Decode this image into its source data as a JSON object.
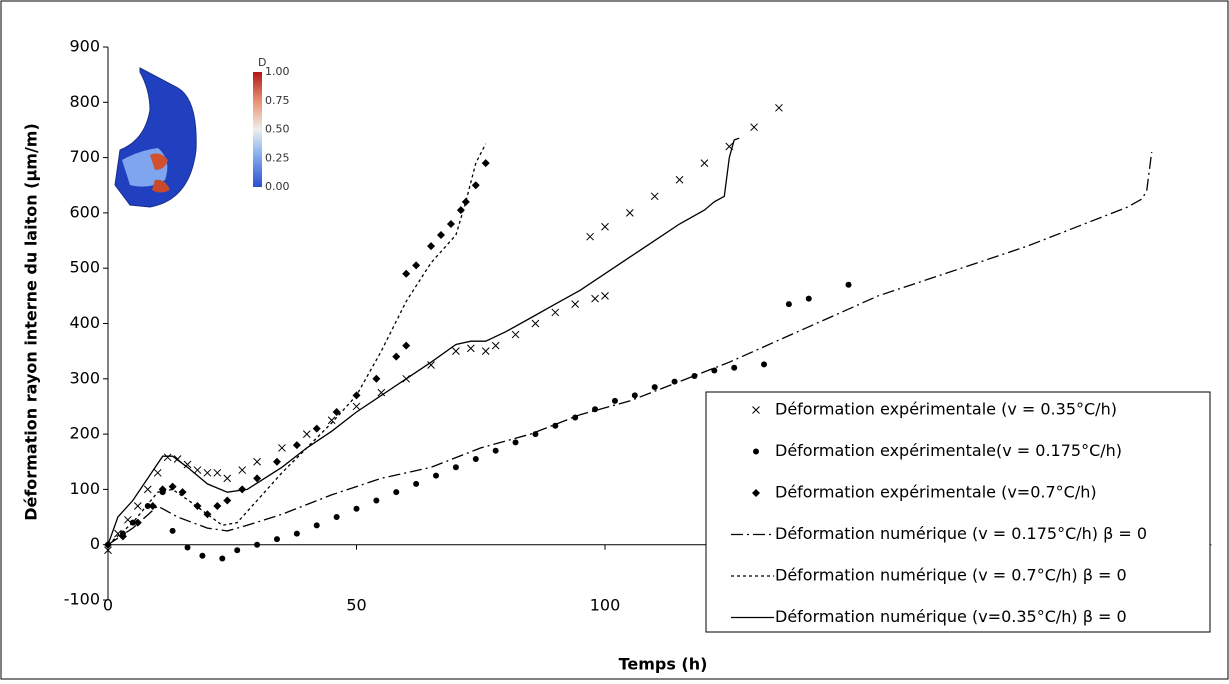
{
  "chart_data": {
    "type": "line",
    "x_label": "Temps (h)",
    "y_label": "Déformation rayon interne du laiton (µm/m)",
    "xlim": [
      0,
      222
    ],
    "ylim": [
      -100,
      900
    ],
    "xticks": [
      0,
      50,
      100
    ],
    "yticks": [
      -100,
      0,
      100,
      200,
      300,
      400,
      500,
      600,
      700,
      800,
      900
    ],
    "legend": "lower right",
    "inset": {
      "label": "D",
      "ticks": [
        "1.00",
        "0.75",
        "0.50",
        "0.25",
        "0.00"
      ]
    },
    "series": [
      {
        "name": "Déformation expérimentale (v = 0.35°C/h)",
        "color": "#000000",
        "marker": "x",
        "x": [
          0,
          2,
          4,
          6,
          8,
          10,
          12,
          14,
          16,
          18,
          20,
          22,
          24,
          27,
          30,
          35,
          40,
          45,
          50,
          55,
          60,
          65,
          70,
          73,
          76,
          78,
          82,
          86,
          90,
          94,
          98,
          100,
          97,
          100,
          105,
          110,
          115,
          120,
          125,
          130,
          135
        ],
        "values": [
          -10,
          20,
          45,
          70,
          100,
          130,
          158,
          155,
          145,
          135,
          130,
          130,
          120,
          135,
          150,
          175,
          200,
          225,
          250,
          275,
          300,
          325,
          350,
          355,
          350,
          360,
          380,
          400,
          420,
          435,
          445,
          450,
          557,
          575,
          600,
          630,
          660,
          690,
          720,
          755,
          790
        ]
      },
      {
        "name": "Déformation expérimentale(v = 0.175°C/h)",
        "color": "#000000",
        "marker": "circle",
        "x": [
          0,
          3,
          5,
          8,
          11,
          13,
          16,
          19,
          23,
          26,
          30,
          34,
          38,
          42,
          46,
          50,
          54,
          58,
          62,
          66,
          70,
          74,
          78,
          82,
          86,
          90,
          94,
          98,
          102,
          106,
          110,
          114,
          118,
          122,
          126,
          132,
          137,
          141,
          149
        ],
        "values": [
          0,
          20,
          40,
          70,
          95,
          25,
          -5,
          -20,
          -25,
          -10,
          0,
          10,
          20,
          35,
          50,
          65,
          80,
          95,
          110,
          125,
          140,
          155,
          170,
          185,
          200,
          215,
          230,
          245,
          260,
          270,
          285,
          295,
          305,
          315,
          320,
          326,
          435,
          445,
          470
        ]
      },
      {
        "name": "Déformation expérimentale (v=0.7°C/h)",
        "color": "#000000",
        "marker": "diamond",
        "x": [
          0,
          3,
          6,
          9,
          11,
          13,
          15,
          18,
          20,
          22,
          24,
          27,
          30,
          34,
          38,
          42,
          46,
          50,
          54,
          58,
          60,
          60,
          62,
          65,
          67,
          69,
          71,
          72,
          74,
          76
        ],
        "values": [
          0,
          15,
          40,
          70,
          100,
          105,
          95,
          70,
          55,
          70,
          80,
          100,
          120,
          150,
          180,
          210,
          240,
          270,
          300,
          340,
          360,
          490,
          505,
          540,
          560,
          580,
          605,
          620,
          650,
          690
        ]
      },
      {
        "name": "Déformation numérique (v = 0.175°C/h) β = 0",
        "color": "#000000",
        "dash": "dashdot",
        "x": [
          0,
          5,
          10,
          14,
          20,
          24,
          28,
          35,
          45,
          55,
          65,
          75,
          85,
          95,
          105,
          115,
          125,
          135,
          145,
          155,
          165,
          175,
          185,
          195,
          205,
          208,
          209,
          210
        ],
        "values": [
          0,
          30,
          70,
          50,
          30,
          25,
          35,
          55,
          90,
          120,
          140,
          175,
          200,
          235,
          260,
          295,
          330,
          370,
          410,
          450,
          480,
          510,
          540,
          575,
          610,
          625,
          640,
          710
        ]
      },
      {
        "name": "Déformation numérique (v = 0.7°C/h) β = 0",
        "color": "#000000",
        "dash": "dotted",
        "x": [
          0,
          5,
          10,
          13,
          17,
          20,
          23,
          26,
          30,
          35,
          40,
          45,
          50,
          55,
          60,
          65,
          70,
          72,
          74,
          76
        ],
        "values": [
          0,
          40,
          95,
          100,
          75,
          55,
          35,
          40,
          80,
          130,
          175,
          220,
          270,
          350,
          440,
          510,
          560,
          620,
          690,
          725
        ]
      },
      {
        "name": "Déformation numérique (v=0.35°C/h) β = 0",
        "color": "#000000",
        "dash": "solid",
        "x": [
          0,
          2,
          5,
          8,
          11,
          13,
          16,
          20,
          24,
          28,
          35,
          40,
          45,
          50,
          55,
          60,
          65,
          70,
          73,
          76,
          80,
          85,
          90,
          95,
          100,
          105,
          110,
          115,
          120,
          122,
          124,
          125,
          126,
          127
        ],
        "values": [
          0,
          50,
          80,
          120,
          160,
          160,
          140,
          110,
          95,
          100,
          140,
          175,
          205,
          240,
          270,
          300,
          330,
          362,
          368,
          368,
          385,
          410,
          435,
          460,
          490,
          520,
          550,
          580,
          605,
          620,
          630,
          700,
          732,
          735
        ]
      }
    ]
  }
}
